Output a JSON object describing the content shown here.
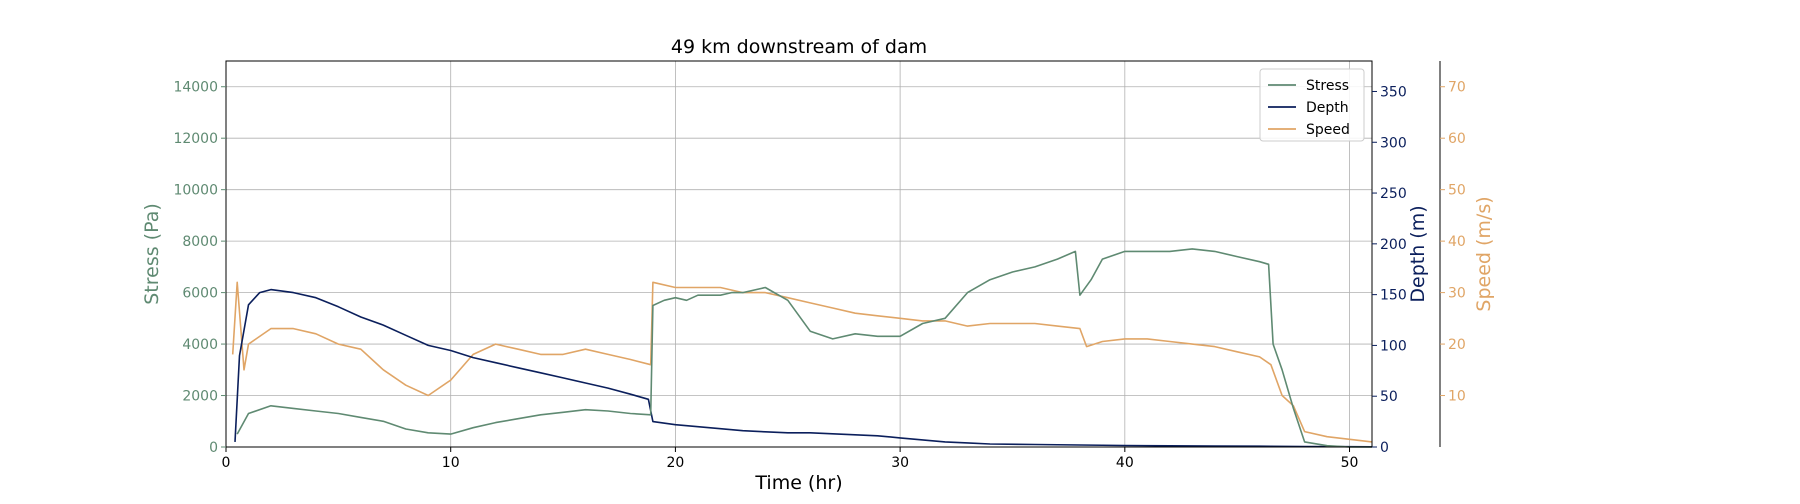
{
  "colors": {
    "stress": "#5f8a72",
    "depth": "#0b1f5c",
    "speed": "#e0a566",
    "grid": "#b0b0b0",
    "frame": "#000000"
  },
  "chart_data": {
    "type": "line",
    "title": "49 km downstream of dam",
    "xlabel": "Time (hr)",
    "xlim": [
      0,
      51
    ],
    "xticks": [
      "0",
      "10",
      "20",
      "30",
      "40",
      "50"
    ],
    "grid": true,
    "legend_position": "top-right",
    "axes": {
      "stress": {
        "label": "Stress (Pa)",
        "ylim": [
          0,
          15000
        ],
        "ticks": [
          "0",
          "2000",
          "4000",
          "6000",
          "8000",
          "10000",
          "12000",
          "14000"
        ]
      },
      "depth": {
        "label": "Depth (m)",
        "ylim": [
          0,
          380
        ],
        "ticks": [
          "0",
          "50",
          "100",
          "150",
          "200",
          "250",
          "300",
          "350"
        ]
      },
      "speed": {
        "label": "Speed (m/s)",
        "ylim": [
          0,
          75
        ],
        "ticks": [
          "10",
          "20",
          "30",
          "40",
          "50",
          "60",
          "70"
        ]
      }
    },
    "series": [
      {
        "name": "Stress",
        "axis": "stress",
        "x": [
          0.5,
          1,
          2,
          3,
          4,
          5,
          6,
          7,
          8,
          9,
          10,
          11,
          12,
          13,
          14,
          15,
          16,
          17,
          18,
          18.9,
          19,
          19.5,
          20,
          20.5,
          21,
          21.5,
          22,
          22.5,
          23,
          24,
          25,
          26,
          27,
          28,
          29,
          30,
          31,
          32,
          33,
          34,
          35,
          36,
          37,
          37.8,
          38,
          38.5,
          39,
          40,
          41,
          42,
          43,
          44,
          45,
          46,
          46.4,
          46.6,
          47,
          47.5,
          48,
          49,
          50,
          51
        ],
        "y": [
          500,
          1300,
          1600,
          1500,
          1400,
          1300,
          1150,
          1000,
          700,
          550,
          500,
          750,
          950,
          1100,
          1250,
          1350,
          1450,
          1400,
          1300,
          1250,
          5500,
          5700,
          5800,
          5700,
          5900,
          5900,
          5900,
          6000,
          6000,
          6200,
          5700,
          4500,
          4200,
          4400,
          4300,
          4300,
          4800,
          5000,
          6000,
          6500,
          6800,
          7000,
          7300,
          7600,
          5900,
          6500,
          7300,
          7600,
          7600,
          7600,
          7700,
          7600,
          7400,
          7200,
          7100,
          4000,
          3000,
          1500,
          200,
          50,
          0,
          0
        ]
      },
      {
        "name": "Depth",
        "axis": "depth",
        "x": [
          0.4,
          0.6,
          1,
          1.5,
          2,
          3,
          4,
          5,
          6,
          7,
          8,
          9,
          10,
          11,
          12,
          13,
          14,
          15,
          16,
          17,
          18,
          18.8,
          19,
          20,
          21,
          22,
          23,
          24,
          25,
          26,
          27,
          28,
          29,
          30,
          31,
          32,
          33,
          34,
          36,
          38,
          40,
          42,
          44,
          46,
          48,
          50,
          51
        ],
        "y": [
          5,
          90,
          140,
          152,
          155,
          152,
          147,
          138,
          128,
          120,
          110,
          100,
          95,
          88,
          83,
          78,
          73,
          68,
          63,
          58,
          52,
          47,
          25,
          22,
          20,
          18,
          16,
          15,
          14,
          14,
          13,
          12,
          11,
          9,
          7,
          5,
          4,
          3,
          2.5,
          2,
          1.5,
          1.2,
          1,
          0.8,
          0.5,
          0.3,
          0.2
        ]
      },
      {
        "name": "Speed",
        "axis": "speed",
        "x": [
          0.3,
          0.5,
          0.8,
          1,
          2,
          3,
          4,
          5,
          6,
          7,
          8,
          9,
          10,
          11,
          12,
          13,
          14,
          15,
          16,
          17,
          18,
          18.9,
          19,
          20,
          21,
          22,
          23,
          24,
          25,
          26,
          27,
          28,
          29,
          30,
          31,
          32,
          33,
          34,
          35,
          36,
          37,
          38,
          38.3,
          39,
          40,
          41,
          42,
          43,
          44,
          45,
          46,
          46.5,
          47,
          47.5,
          48,
          49,
          50,
          51
        ],
        "y": [
          18,
          32,
          15,
          20,
          23,
          23,
          22,
          20,
          19,
          15,
          12,
          10,
          13,
          18,
          20,
          19,
          18,
          18,
          19,
          18,
          17,
          16,
          32,
          31,
          31,
          31,
          30,
          30,
          29,
          28,
          27,
          26,
          25.5,
          25,
          24.5,
          24.5,
          23.5,
          24,
          24,
          24,
          23.5,
          23,
          19.5,
          20.5,
          21,
          21,
          20.5,
          20,
          19.5,
          18.5,
          17.5,
          16,
          10,
          8,
          3,
          2,
          1.5,
          1
        ]
      }
    ],
    "legend": [
      "Stress",
      "Depth",
      "Speed"
    ]
  }
}
